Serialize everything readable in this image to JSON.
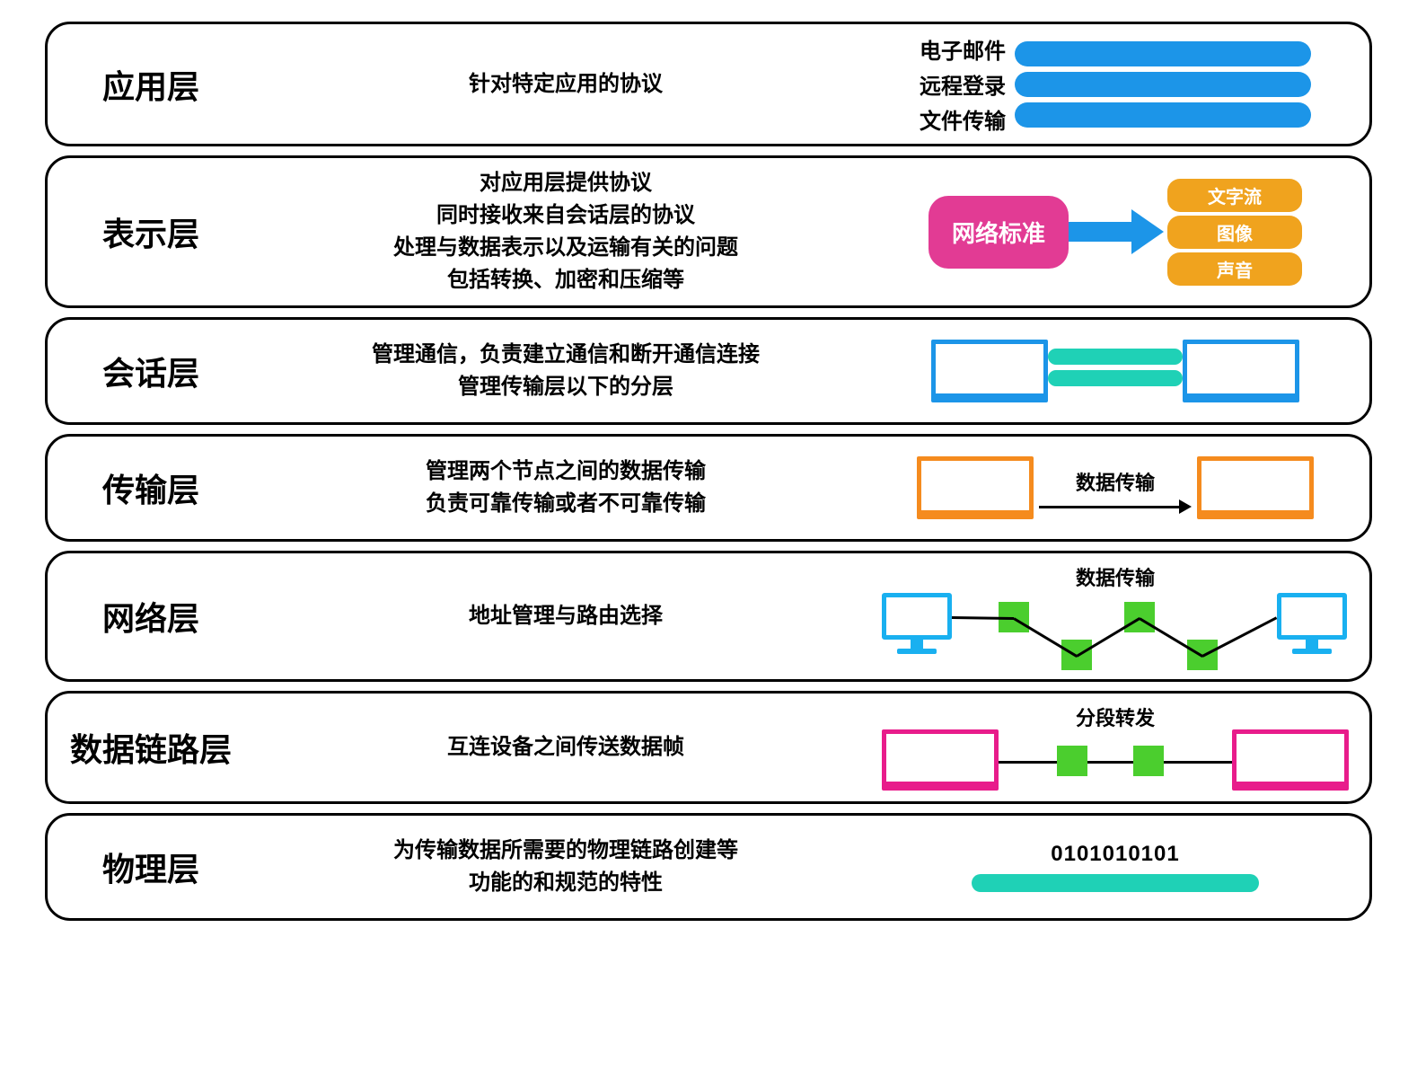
{
  "colors": {
    "blue": "#1c95e8",
    "pink": "#e23b94",
    "orange": "#f0a31e",
    "teal": "#1fd1b6",
    "orangeBorder": "#f58b1e",
    "green": "#4bce2e",
    "magenta": "#e81c8b",
    "cyan": "#19b0f0"
  },
  "layers": [
    {
      "title": "应用层",
      "desc": [
        "针对特定应用的协议"
      ],
      "graphic": {
        "type": "app",
        "items": [
          "电子邮件",
          "远程登录",
          "文件传输"
        ],
        "bar_color": "#1c95e8"
      }
    },
    {
      "title": "表示层",
      "desc": [
        "对应用层提供协议",
        "同时接收来自会话层的协议",
        "处理与数据表示以及运输有关的问题",
        "包括转换、加密和压缩等"
      ],
      "graphic": {
        "type": "presentation",
        "pill_text": "网络标准",
        "pill_color": "#e23b94",
        "arrow_color": "#1c95e8",
        "out_items": [
          "文字流",
          "图像",
          "声音"
        ],
        "out_color": "#f0a31e"
      }
    },
    {
      "title": "会话层",
      "desc": [
        "管理通信，负责建立通信和断开通信连接",
        "管理传输层以下的分层"
      ],
      "graphic": {
        "type": "session",
        "laptop_color": "#1c95e8",
        "bar_color": "#1fd1b6"
      }
    },
    {
      "title": "传输层",
      "desc": [
        "管理两个节点之间的数据传输",
        "负责可靠传输或者不可靠传输"
      ],
      "graphic": {
        "type": "transport",
        "label": "数据传输",
        "laptop_color": "#f58b1e"
      }
    },
    {
      "title": "网络层",
      "desc": [
        "地址管理与路由选择"
      ],
      "graphic": {
        "type": "network",
        "label": "数据传输",
        "monitor_color": "#19b0f0",
        "router_color": "#4bce2e"
      }
    },
    {
      "title": "数据链路层",
      "desc": [
        "互连设备之间传送数据帧"
      ],
      "graphic": {
        "type": "datalink",
        "label": "分段转发",
        "laptop_color": "#e81c8b",
        "node_color": "#4bce2e"
      }
    },
    {
      "title": "物理层",
      "desc": [
        "为传输数据所需要的物理链路创建等",
        "功能的和规范的特性"
      ],
      "graphic": {
        "type": "physical",
        "bits": "0101010101",
        "bar_color": "#1fd1b6"
      }
    }
  ]
}
